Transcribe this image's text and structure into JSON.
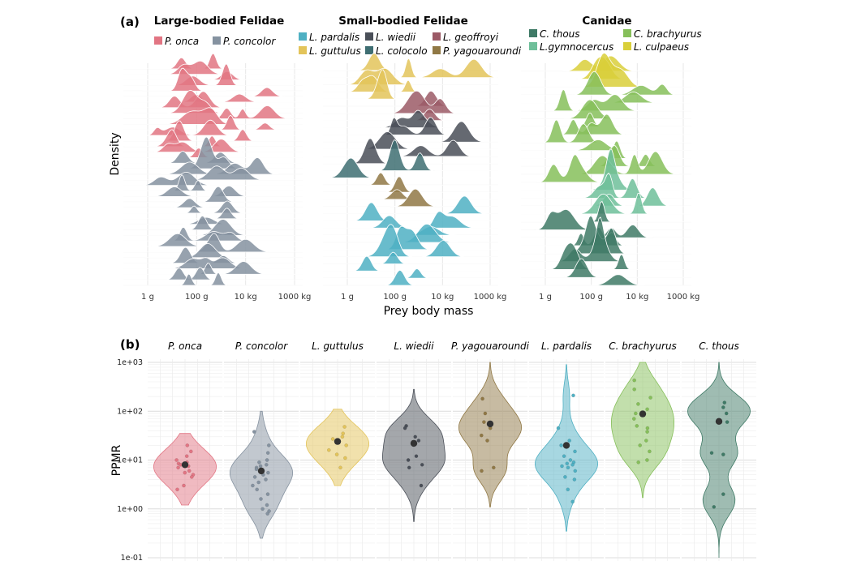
{
  "panel_a": {
    "label": "(a)",
    "ylabel": "Density",
    "xlabel": "Prey body mass",
    "x_ticks": [
      "1 g",
      "100 g",
      "10 kg",
      "1000 kg"
    ],
    "groups": [
      {
        "title": "Large-bodied Felidae",
        "legend": [
          {
            "name": "P. onca",
            "color": "#e27583"
          },
          {
            "name": "P. concolor",
            "color": "#8592a0"
          }
        ],
        "ridges": [
          {
            "species": "P. onca",
            "count": 17
          },
          {
            "species": "P. concolor",
            "count": 23
          }
        ]
      },
      {
        "title": "Small-bodied Felidae",
        "legend": [
          {
            "name": "L. pardalis",
            "color": "#4fb0c3"
          },
          {
            "name": "L. wiedii",
            "color": "#4a4f58"
          },
          {
            "name": "L. geoffroyi",
            "color": "#9b5a66"
          },
          {
            "name": "L. guttulus",
            "color": "#e3c45a"
          },
          {
            "name": "L. colocolo",
            "color": "#3e6e72"
          },
          {
            "name": "P. yagouaroundi",
            "color": "#907845"
          }
        ],
        "ridges": [
          {
            "species": "L. guttulus",
            "count": 5
          },
          {
            "species": "L. geoffroyi",
            "count": 3
          },
          {
            "species": "L. wiedii",
            "count": 6
          },
          {
            "species": "L. colocolo",
            "count": 2
          },
          {
            "species": "P. yagouaroundi",
            "count": 4
          },
          {
            "species": "L. pardalis",
            "count": 11
          }
        ]
      },
      {
        "title": "Canidae",
        "legend": [
          {
            "name": "C. thous",
            "color": "#3f7a66"
          },
          {
            "name": "C. brachyurus",
            "color": "#86bf5a"
          },
          {
            "name": "L.gymnocercus",
            "color": "#6fbf9a"
          },
          {
            "name": "L. culpaeus",
            "color": "#d9cf3a"
          }
        ],
        "ridges": [
          {
            "species": "L. culpaeus",
            "count": 3
          },
          {
            "species": "C. brachyurus",
            "count": 12
          },
          {
            "species": "L.gymnocercus",
            "count": 4
          },
          {
            "species": "C. thous",
            "count": 9
          }
        ]
      }
    ]
  },
  "chart_data": [
    {
      "type": "area",
      "title": "",
      "xlabel": "Prey body mass",
      "ylabel": "Density",
      "x_scale": "log",
      "x_tick_labels": [
        "1 g",
        "100 g",
        "10 kg",
        "1000 kg"
      ],
      "note": "Stacked density ridges of prey body mass per scat/individual sample, grouped by predator family"
    },
    {
      "type": "violin",
      "title": "",
      "ylabel": "PPMR",
      "y_scale": "log",
      "ylim": [
        0.1,
        1000
      ],
      "y_tick_labels": [
        "1e-01",
        "1e+00",
        "1e+01",
        "1e+02",
        "1e+03"
      ],
      "series": [
        {
          "name": "P. onca",
          "color": "#e27583",
          "median": 8,
          "range": [
            1.2,
            35
          ],
          "points": [
            20,
            15,
            12,
            10,
            9,
            8.5,
            8,
            7.5,
            7,
            6,
            5.5,
            5,
            4.5,
            3,
            2.5
          ]
        },
        {
          "name": "P. concolor",
          "color": "#8592a0",
          "median": 6,
          "range": [
            0.25,
            100
          ],
          "points": [
            38,
            20,
            14,
            10,
            9,
            8,
            7.5,
            7,
            6.5,
            6,
            5.5,
            5,
            4.5,
            4,
            3.5,
            3,
            2.5,
            2,
            1.6,
            1.2,
            1,
            0.9,
            0.8
          ]
        },
        {
          "name": "L. guttulus",
          "color": "#e3c45a",
          "median": 24,
          "range": [
            3,
            110
          ],
          "points": [
            48,
            35,
            30,
            27,
            24,
            20,
            16,
            13,
            11,
            7
          ]
        },
        {
          "name": "L. wiedii",
          "color": "#4a4f58",
          "median": 22,
          "range": [
            0.55,
            280
          ],
          "points": [
            50,
            45,
            30,
            25,
            12,
            10,
            8,
            7,
            3
          ]
        },
        {
          "name": "P. yagouaroundi",
          "color": "#907845",
          "median": 55,
          "range": [
            1.1,
            1000
          ],
          "points": [
            180,
            90,
            60,
            45,
            32,
            25,
            7,
            6
          ]
        },
        {
          "name": "L. pardalis",
          "color": "#4fb0c3",
          "median": 20,
          "range": [
            0.35,
            900
          ],
          "points": [
            210,
            45,
            25,
            20,
            15,
            12,
            10,
            9,
            8.5,
            8,
            7.5,
            7,
            6,
            4.5,
            4,
            2.5,
            1.4
          ]
        },
        {
          "name": "C. brachyurus",
          "color": "#86bf5a",
          "median": 88,
          "range": [
            1.7,
            1000
          ],
          "points": [
            430,
            280,
            190,
            140,
            110,
            90,
            70,
            50,
            45,
            38,
            25,
            20,
            15,
            10,
            9
          ]
        },
        {
          "name": "C. thous",
          "color": "#3f7a66",
          "median": 62,
          "range": [
            0.1,
            1000
          ],
          "points": [
            150,
            120,
            90,
            60,
            14,
            13,
            2,
            1.1
          ]
        }
      ]
    }
  ],
  "panel_b": {
    "label": "(b)",
    "ylabel": "PPMR"
  }
}
